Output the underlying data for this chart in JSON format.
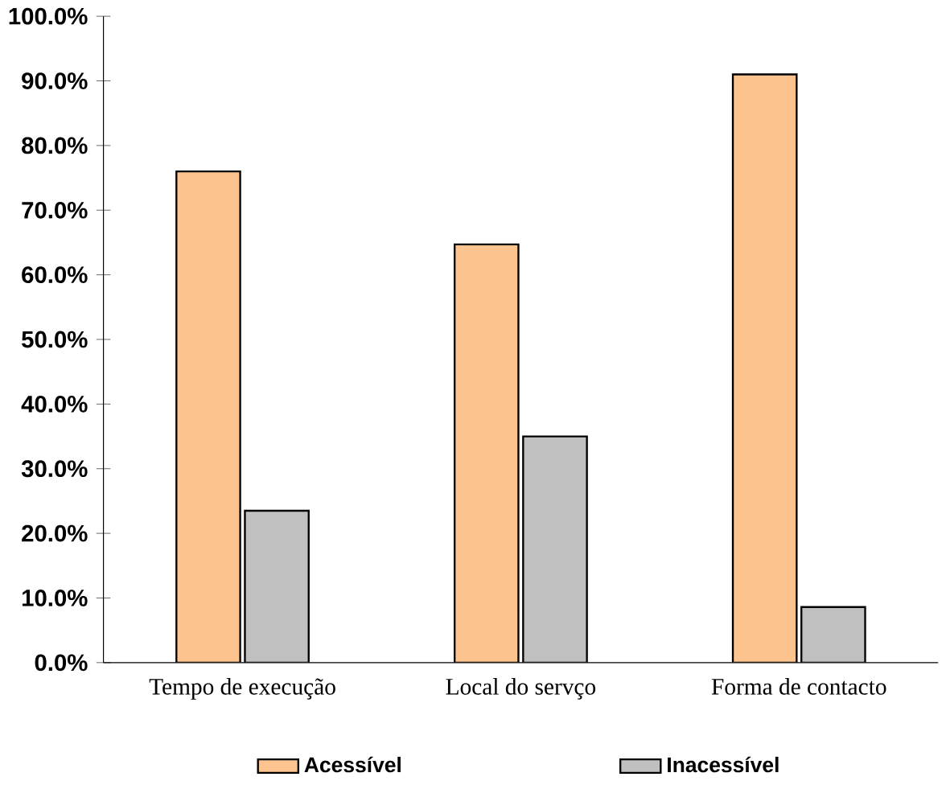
{
  "chart_data": {
    "type": "bar",
    "categories": [
      "Tempo de execução",
      "Local do servço",
      "Forma de contacto"
    ],
    "series": [
      {
        "name": "Acessível",
        "color": "#fdc48f",
        "values": [
          76.0,
          64.7,
          91.0
        ]
      },
      {
        "name": "Inacessível",
        "color": "#c0c0c0",
        "values": [
          23.5,
          35.0,
          8.6
        ]
      }
    ],
    "ylim": [
      0,
      100
    ],
    "yticks": [
      {
        "value": 0,
        "label": "0.0%"
      },
      {
        "value": 10,
        "label": "10.0%"
      },
      {
        "value": 20,
        "label": "20.0%"
      },
      {
        "value": 30,
        "label": "30.0%"
      },
      {
        "value": 40,
        "label": "40.0%"
      },
      {
        "value": 50,
        "label": "50.0%"
      },
      {
        "value": 60,
        "label": "60.0%"
      },
      {
        "value": 70,
        "label": "70.0%"
      },
      {
        "value": 80,
        "label": "80.0%"
      },
      {
        "value": 90,
        "label": "90.0%"
      },
      {
        "value": 100,
        "label": "100.0%"
      }
    ],
    "grid": false,
    "legend": "bottom"
  }
}
